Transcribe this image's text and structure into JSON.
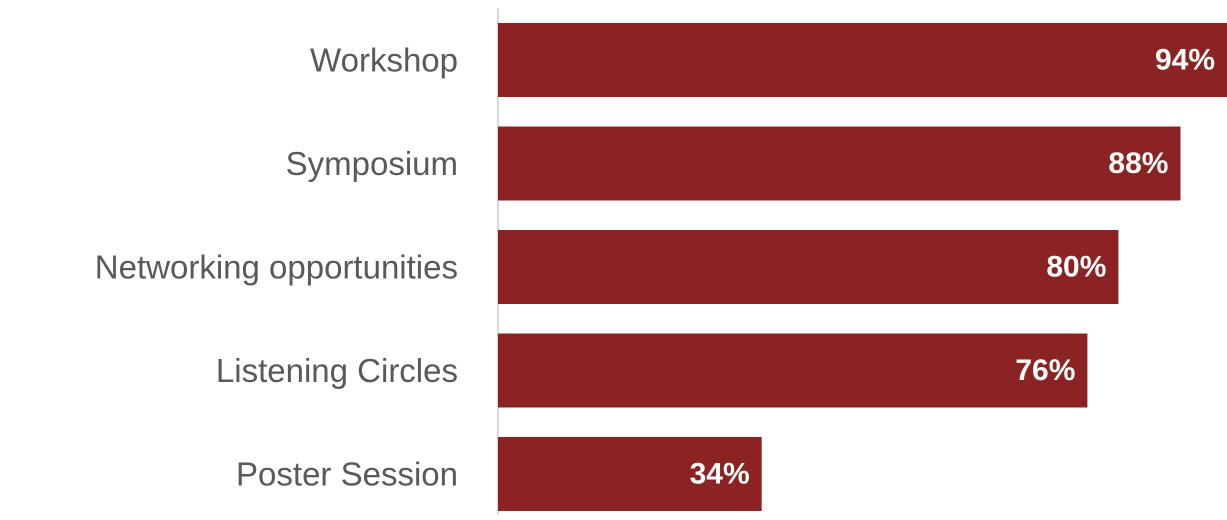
{
  "chart_data": {
    "type": "bar",
    "orientation": "horizontal",
    "categories": [
      "Workshop",
      "Symposium",
      "Networking opportunities",
      "Listening Circles",
      "Poster Session"
    ],
    "values": [
      94,
      88,
      80,
      76,
      34
    ],
    "value_labels": [
      "94%",
      "88%",
      "80%",
      "76%",
      "34%"
    ],
    "xlim": [
      0,
      94
    ],
    "bar_color": "#8B2323",
    "label_color": "#595959",
    "value_label_color": "#ffffff",
    "grid": false,
    "title": "",
    "xlabel": "",
    "ylabel": ""
  }
}
